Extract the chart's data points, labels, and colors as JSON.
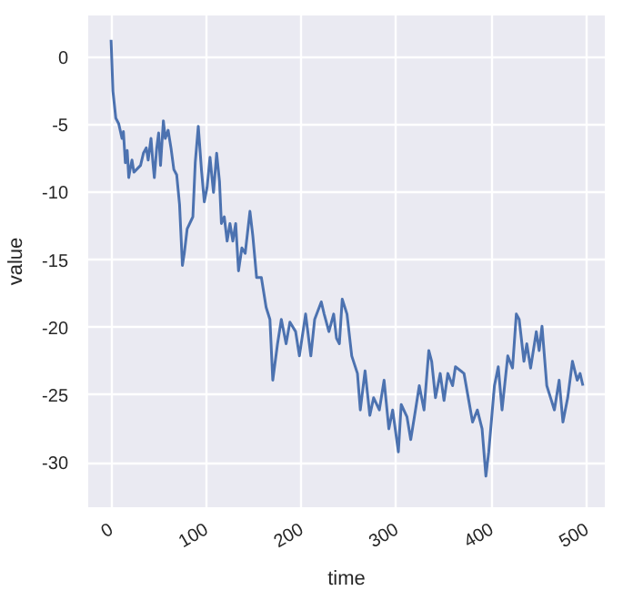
{
  "chart_data": {
    "type": "line",
    "xlabel": "time",
    "ylabel": "value",
    "x": [
      0,
      2,
      5,
      8,
      11.5,
      13,
      15,
      17,
      18.6,
      20,
      22,
      24,
      31,
      34,
      37,
      39,
      42,
      44,
      45.5,
      48,
      50,
      52,
      55,
      57,
      60,
      63,
      66,
      69,
      72,
      75,
      77,
      80,
      84,
      86,
      88.5,
      91.7,
      95,
      98,
      101,
      104,
      107.7,
      111,
      114,
      116,
      119,
      122,
      125,
      128,
      131,
      134,
      137.5,
      141,
      146,
      149,
      153,
      158,
      163,
      167,
      170,
      175,
      179,
      184,
      188,
      194,
      198,
      204.5,
      210,
      214,
      221,
      224,
      229,
      234,
      237,
      240,
      243,
      248,
      253,
      259,
      262,
      267,
      272,
      276,
      282,
      287,
      292,
      296,
      302,
      305,
      311,
      315,
      320,
      324,
      329,
      334,
      337,
      341,
      346,
      350,
      354,
      359,
      362,
      371,
      375,
      380,
      385,
      390,
      394,
      397,
      403,
      407,
      411,
      417,
      422,
      426,
      429,
      434,
      437,
      441,
      447,
      450,
      453,
      458,
      462,
      466,
      471,
      475,
      480,
      485,
      490,
      493,
      496
    ],
    "series": [
      {
        "color": "#4c72b0",
        "values": [
          1.3,
          -2.5,
          -4.5,
          -4.9,
          -6,
          -5.5,
          -7.8,
          -6.9,
          -8.9,
          -8.3,
          -7.6,
          -8.5,
          -8,
          -7.1,
          -6.7,
          -7.6,
          -6,
          -7.8,
          -8.9,
          -6.7,
          -5.6,
          -8,
          -4.7,
          -6,
          -5.4,
          -6.7,
          -8.3,
          -8.7,
          -10.9,
          -15.4,
          -14.5,
          -12.7,
          -12.1,
          -11.8,
          -7.8,
          -5.1,
          -8.3,
          -10.7,
          -9.6,
          -7.4,
          -10,
          -7.1,
          -9.2,
          -12.3,
          -11.8,
          -13.6,
          -12.3,
          -13.6,
          -12.3,
          -15.8,
          -14.1,
          -14.5,
          -11.4,
          -13.2,
          -16.3,
          -16.3,
          -18.5,
          -19.4,
          -23.9,
          -21.2,
          -19.4,
          -21.2,
          -19.6,
          -20.3,
          -22.1,
          -19,
          -22.1,
          -19.4,
          -18.1,
          -19,
          -20.3,
          -19,
          -20.8,
          -21.2,
          -17.9,
          -19,
          -22.1,
          -23.4,
          -26.1,
          -23.2,
          -26.5,
          -25.2,
          -26.1,
          -23.9,
          -27.5,
          -26.1,
          -29.2,
          -25.7,
          -26.6,
          -28.3,
          -26.1,
          -24.3,
          -26.1,
          -21.7,
          -22.5,
          -25.2,
          -23.4,
          -25.4,
          -23.4,
          -24.3,
          -22.9,
          -23.4,
          -25,
          -27,
          -26.1,
          -27.5,
          -31,
          -29.2,
          -24.3,
          -22.9,
          -26.1,
          -22.1,
          -23,
          -19,
          -19.4,
          -22.5,
          -21.2,
          -23,
          -20.3,
          -21.7,
          -19.9,
          -24.3,
          -25.2,
          -26.1,
          -23.9,
          -27,
          -25.2,
          -22.5,
          -23.9,
          -23.4,
          -24.3
        ]
      }
    ],
    "xlim": [
      -24,
      519
    ],
    "ylim": [
      -33.3,
      3.1
    ],
    "xticks": [
      0,
      100,
      200,
      300,
      400,
      500
    ],
    "yticks": [
      0,
      -5,
      -10,
      -15,
      -20,
      -25,
      -30
    ],
    "grid": true,
    "marker": "none",
    "line_style": "solid"
  }
}
